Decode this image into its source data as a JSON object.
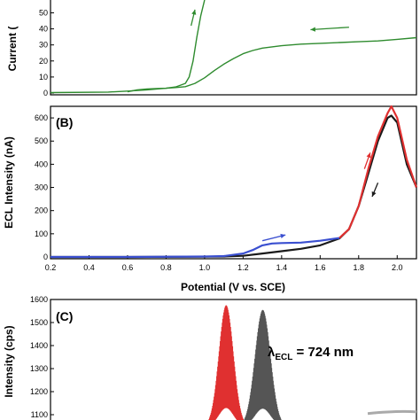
{
  "chart_data": [
    {
      "panel_label": "",
      "type": "line",
      "ylabel": "Current (",
      "xlim": [
        0.2,
        2.1
      ],
      "ylim": [
        0,
        58
      ],
      "yticks": [
        0,
        10,
        20,
        30,
        40,
        50
      ],
      "line_color": "#2e8b2e",
      "arrow_color": "#2e8b2e",
      "series": [
        {
          "segment": "forward",
          "x": [
            0.2,
            0.5,
            0.6,
            0.7,
            0.8,
            0.85,
            0.9,
            0.92,
            0.94,
            0.96,
            0.98,
            1.0
          ],
          "y": [
            0.3,
            0.6,
            1.2,
            2.0,
            3.0,
            3.8,
            6.0,
            10.0,
            20.0,
            35.0,
            48.0,
            58.0
          ]
        },
        {
          "segment": "reverse",
          "x": [
            2.1,
            2.0,
            1.9,
            1.8,
            1.7,
            1.6,
            1.5,
            1.4,
            1.3,
            1.25,
            1.2,
            1.15,
            1.1,
            1.05,
            1.0,
            0.95,
            0.9,
            0.85,
            0.8,
            0.75,
            0.7,
            0.65,
            0.6
          ],
          "y": [
            34.5,
            33.5,
            32.5,
            32.0,
            31.5,
            31.0,
            30.5,
            29.5,
            28.0,
            26.5,
            24.5,
            21.5,
            18.0,
            14.0,
            9.5,
            6.0,
            4.0,
            3.4,
            3.0,
            2.8,
            2.5,
            2.0,
            0.8
          ]
        }
      ]
    },
    {
      "panel_label": "(B)",
      "type": "line",
      "xlabel": "Potential (V vs. SCE)",
      "ylabel": "ECL Intensity (nA)",
      "xlim": [
        0.2,
        2.1
      ],
      "ylim": [
        0,
        650
      ],
      "xticks": [
        0.2,
        0.4,
        0.6,
        0.8,
        1.0,
        1.2,
        1.4,
        1.6,
        1.8,
        2.0
      ],
      "xtick_labels": [
        "0.2",
        "0.4",
        "0.6",
        "0.8",
        "1.0",
        "1.2",
        "1.4",
        "1.6",
        "1.8",
        "2.0"
      ],
      "yticks": [
        0,
        100,
        200,
        300,
        400,
        500,
        600
      ],
      "series": [
        {
          "color": "#3a4fd0",
          "x": [
            0.2,
            0.6,
            1.0,
            1.1,
            1.2,
            1.25,
            1.3,
            1.35,
            1.4,
            1.5,
            1.6,
            1.7
          ],
          "y": [
            0,
            0,
            2,
            4,
            15,
            30,
            50,
            58,
            60,
            62,
            70,
            82
          ]
        },
        {
          "color": "#e03030",
          "x": [
            1.7,
            1.75,
            1.8,
            1.85,
            1.9,
            1.95,
            1.97,
            2.0,
            2.05,
            2.1
          ],
          "y": [
            82,
            120,
            220,
            380,
            520,
            620,
            650,
            600,
            420,
            300
          ]
        },
        {
          "color": "#1a1a1a",
          "x": [
            2.1,
            2.05,
            2.0,
            1.97,
            1.95,
            1.9,
            1.85,
            1.8,
            1.75,
            1.7,
            1.6,
            1.5,
            1.4,
            1.3,
            1.2,
            1.1,
            1.0,
            0.6,
            0.2
          ],
          "y": [
            300,
            400,
            580,
            610,
            600,
            500,
            360,
            220,
            120,
            80,
            50,
            35,
            25,
            15,
            5,
            2,
            1,
            0,
            0
          ]
        }
      ],
      "arrows": [
        {
          "color": "#3a4fd0",
          "from": [
            1.3,
            70
          ],
          "to": [
            1.42,
            95
          ]
        },
        {
          "color": "#e03030",
          "from": [
            1.83,
            380
          ],
          "to": [
            1.86,
            450
          ]
        },
        {
          "color": "#1a1a1a",
          "from": [
            1.9,
            320
          ],
          "to": [
            1.87,
            260
          ]
        }
      ]
    },
    {
      "panel_label": "(C)",
      "type": "line",
      "ylabel": "Intensity (cps)",
      "ylim": [
        1100,
        1600
      ],
      "yticks": [
        1100,
        1200,
        1300,
        1400,
        1500,
        1600
      ],
      "annotation_parts": {
        "lambda": "λ",
        "sub": "ECL",
        "rest": " = 724 nm"
      },
      "series": [
        {
          "color": "#e03030",
          "peak_x": 0.48,
          "width": 0.028,
          "peak": 1575
        },
        {
          "color": "#555555",
          "peak_x": 0.58,
          "width": 0.03,
          "peak": 1555
        }
      ]
    }
  ]
}
